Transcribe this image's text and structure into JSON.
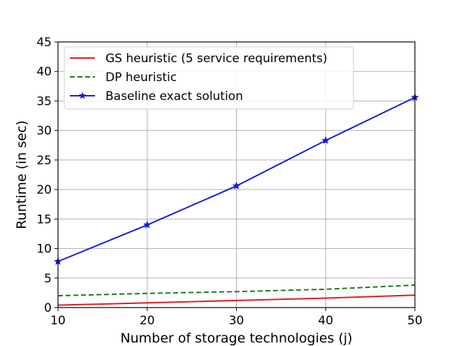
{
  "chart_data": {
    "type": "line",
    "title": "",
    "xlabel": "Number of storage technologies (j)",
    "ylabel": "Runtime (in sec)",
    "xlim": [
      10,
      50
    ],
    "ylim": [
      0,
      45
    ],
    "xticks": [
      10,
      20,
      30,
      40,
      50
    ],
    "yticks": [
      0,
      5,
      10,
      15,
      20,
      25,
      30,
      35,
      40,
      45
    ],
    "grid": true,
    "legend_position": "top-left",
    "series": [
      {
        "name": "GS heuristic (5 service requirements)",
        "color": "#e31a1c",
        "style": "solid",
        "marker": "none",
        "x": [
          10,
          20,
          30,
          40,
          50
        ],
        "y": [
          0.4,
          0.8,
          1.2,
          1.6,
          2.1
        ]
      },
      {
        "name": "DP heuristic",
        "color": "#1a7a1a",
        "style": "dashed",
        "marker": "none",
        "x": [
          10,
          20,
          30,
          40,
          50
        ],
        "y": [
          2.0,
          2.4,
          2.7,
          3.1,
          3.8
        ]
      },
      {
        "name": "Baseline exact solution",
        "color": "#1a1ad0",
        "style": "solid",
        "marker": "star",
        "x": [
          10,
          20,
          30,
          40,
          50
        ],
        "y": [
          7.8,
          14.0,
          20.6,
          28.3,
          35.6
        ]
      }
    ]
  }
}
